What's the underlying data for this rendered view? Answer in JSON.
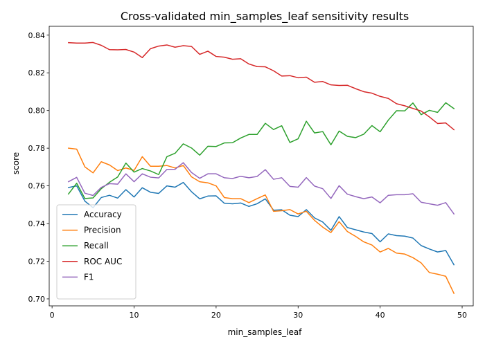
{
  "chart_data": {
    "type": "line",
    "title": "Cross-validated min_samples_leaf sensitivity results",
    "xlabel": "min_samples_leaf",
    "ylabel": "score",
    "xlim": [
      -0.35,
      51.35
    ],
    "ylim": [
      0.6963,
      0.8447
    ],
    "xticks": [
      "0",
      "10",
      "20",
      "30",
      "40",
      "50"
    ],
    "yticks": [
      "0.70",
      "0.72",
      "0.74",
      "0.76",
      "0.78",
      "0.80",
      "0.82",
      "0.84"
    ],
    "grid": false,
    "legend_position": "lower-left",
    "x": [
      2,
      3,
      4,
      5,
      6,
      7,
      8,
      9,
      10,
      11,
      12,
      13,
      14,
      15,
      16,
      17,
      18,
      19,
      20,
      21,
      22,
      23,
      24,
      25,
      26,
      27,
      28,
      29,
      30,
      31,
      32,
      33,
      34,
      35,
      36,
      37,
      38,
      39,
      40,
      41,
      42,
      43,
      44,
      45,
      46,
      47,
      48,
      49
    ],
    "series": [
      {
        "name": "Accuracy",
        "color": "#1f77b4",
        "values": [
          0.7591,
          0.76,
          0.7519,
          0.7484,
          0.7538,
          0.755,
          0.7535,
          0.758,
          0.7541,
          0.759,
          0.7566,
          0.756,
          0.76,
          0.7593,
          0.7618,
          0.7569,
          0.7531,
          0.7546,
          0.7547,
          0.7508,
          0.7505,
          0.7509,
          0.7491,
          0.7505,
          0.7531,
          0.7471,
          0.7473,
          0.7444,
          0.7437,
          0.7474,
          0.743,
          0.7408,
          0.7364,
          0.7437,
          0.7379,
          0.7367,
          0.7355,
          0.7347,
          0.7303,
          0.7345,
          0.7336,
          0.7333,
          0.7323,
          0.7283,
          0.7265,
          0.7249,
          0.7257,
          0.7181
        ]
      },
      {
        "name": "Precision",
        "color": "#ff7f0e",
        "values": [
          0.78,
          0.7795,
          0.7701,
          0.7669,
          0.7728,
          0.7711,
          0.7681,
          0.7695,
          0.7682,
          0.7755,
          0.7704,
          0.7704,
          0.7708,
          0.7695,
          0.7708,
          0.7648,
          0.7622,
          0.7616,
          0.76,
          0.7538,
          0.7532,
          0.7532,
          0.7511,
          0.7532,
          0.7552,
          0.7465,
          0.7468,
          0.7474,
          0.7451,
          0.7465,
          0.7417,
          0.7381,
          0.7352,
          0.741,
          0.7358,
          0.7332,
          0.7303,
          0.7286,
          0.7249,
          0.7268,
          0.7243,
          0.7238,
          0.7219,
          0.7191,
          0.714,
          0.7131,
          0.712,
          0.7029
        ]
      },
      {
        "name": "Recall",
        "color": "#2ca02c",
        "values": [
          0.7557,
          0.7614,
          0.7533,
          0.7536,
          0.7585,
          0.7619,
          0.7647,
          0.7721,
          0.7673,
          0.7692,
          0.7679,
          0.766,
          0.7755,
          0.7773,
          0.7823,
          0.7801,
          0.7763,
          0.781,
          0.7809,
          0.7828,
          0.7829,
          0.7854,
          0.7873,
          0.7873,
          0.7932,
          0.7899,
          0.7919,
          0.783,
          0.785,
          0.7943,
          0.7881,
          0.7888,
          0.7818,
          0.7891,
          0.7863,
          0.7856,
          0.7874,
          0.792,
          0.7887,
          0.7949,
          0.7999,
          0.7998,
          0.804,
          0.7978,
          0.8001,
          0.799,
          0.8041,
          0.801
        ]
      },
      {
        "name": "ROC AUC",
        "color": "#d62728",
        "values": [
          0.836,
          0.8358,
          0.8358,
          0.8361,
          0.8346,
          0.8323,
          0.8322,
          0.8324,
          0.831,
          0.8281,
          0.8328,
          0.8342,
          0.8348,
          0.8336,
          0.8344,
          0.834,
          0.8298,
          0.8315,
          0.8287,
          0.8283,
          0.8272,
          0.8275,
          0.8247,
          0.8233,
          0.8232,
          0.8211,
          0.8183,
          0.8185,
          0.8174,
          0.8177,
          0.815,
          0.8154,
          0.8136,
          0.8133,
          0.8134,
          0.8116,
          0.81,
          0.8092,
          0.8075,
          0.8064,
          0.8036,
          0.8025,
          0.8011,
          0.7997,
          0.7966,
          0.7931,
          0.7934,
          0.7898
        ]
      },
      {
        "name": "F1",
        "color": "#9467bd",
        "values": [
          0.7622,
          0.7645,
          0.7561,
          0.7549,
          0.7592,
          0.7612,
          0.7609,
          0.7664,
          0.7622,
          0.7664,
          0.7646,
          0.7642,
          0.7687,
          0.7688,
          0.7723,
          0.7671,
          0.764,
          0.7664,
          0.7664,
          0.7643,
          0.7639,
          0.7651,
          0.7643,
          0.765,
          0.7686,
          0.7635,
          0.7643,
          0.7597,
          0.7593,
          0.7644,
          0.7599,
          0.7585,
          0.7533,
          0.7601,
          0.7556,
          0.7543,
          0.7532,
          0.7541,
          0.751,
          0.755,
          0.7553,
          0.7553,
          0.7558,
          0.7513,
          0.7505,
          0.7497,
          0.7511,
          0.7451
        ]
      }
    ]
  }
}
